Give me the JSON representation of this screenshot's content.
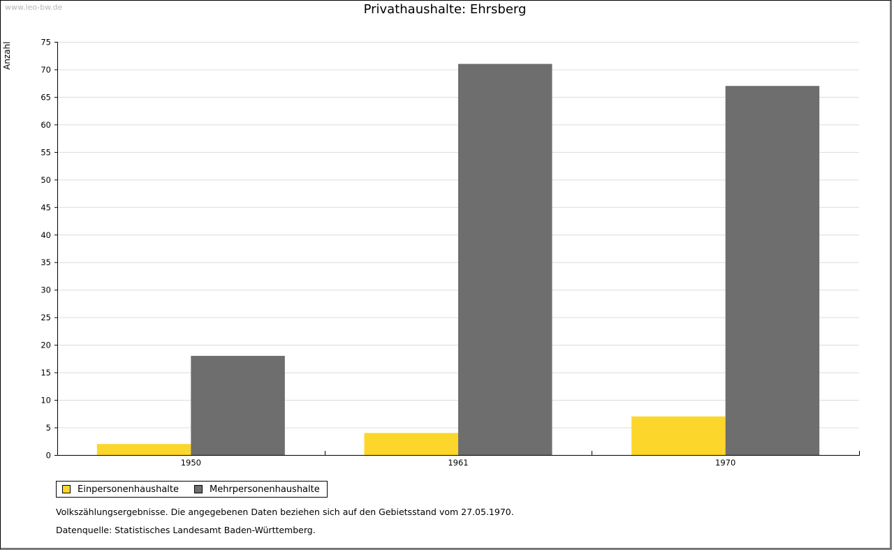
{
  "header": {
    "watermark": "www.leo-bw.de"
  },
  "chart_data": {
    "type": "bar",
    "title": "Privathaushalte: Ehrsberg",
    "ylabel": "Anzahl",
    "xlabel": "",
    "categories": [
      "1950",
      "1961",
      "1970"
    ],
    "series": [
      {
        "name": "Einpersonenhaushalte",
        "color": "#fcd62b",
        "values": [
          2,
          4,
          7
        ]
      },
      {
        "name": "Mehrpersonenhaushalte",
        "color": "#6e6e6e",
        "values": [
          18,
          71,
          67
        ]
      }
    ],
    "ylim": [
      0,
      75
    ],
    "ytick_step": 5,
    "yticks": [
      "0",
      "5",
      "10",
      "15",
      "20",
      "25",
      "30",
      "35",
      "40",
      "45",
      "50",
      "55",
      "60",
      "65",
      "70",
      "75"
    ],
    "grid": true,
    "legend_position": "bottom-left"
  },
  "footer": {
    "note": "Volkszählungsergebnisse. Die angegebenen Daten beziehen sich auf den Gebietsstand vom 27.05.1970.",
    "source": "Datenquelle: Statistisches Landesamt Baden-Württemberg."
  }
}
